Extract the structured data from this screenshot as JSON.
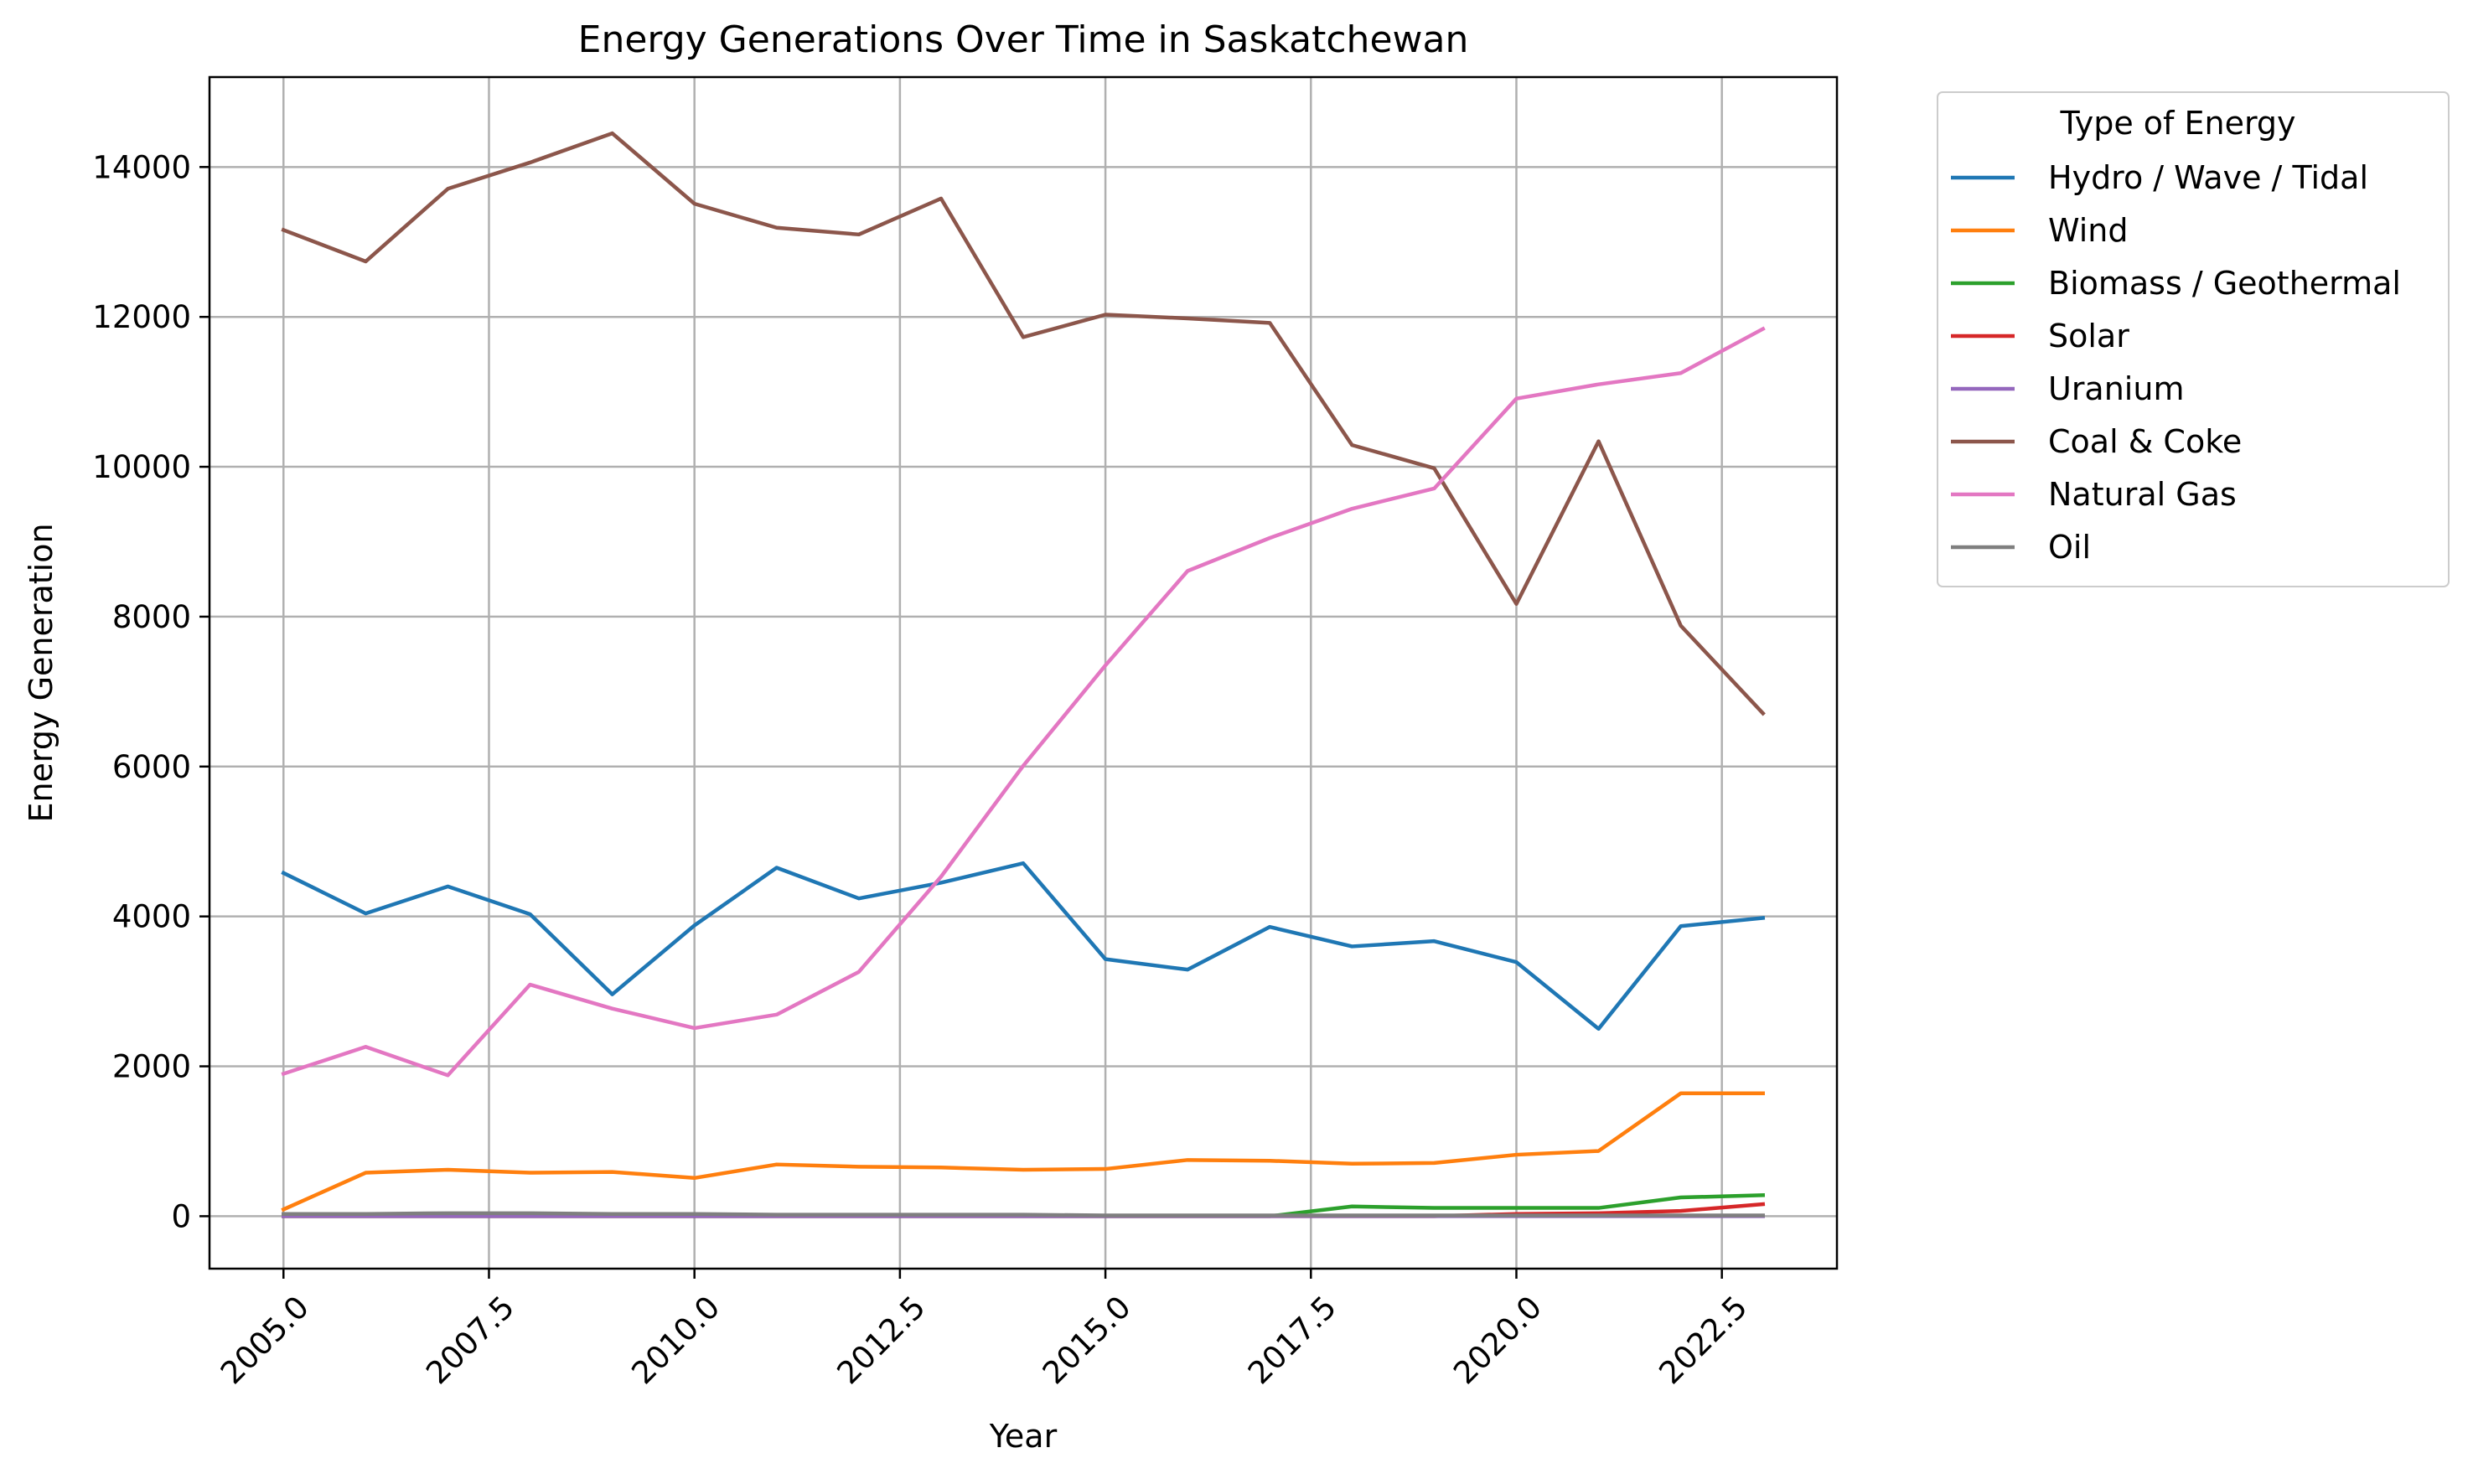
{
  "chart_data": {
    "type": "line",
    "title": "Energy Generations Over Time in Saskatchewan",
    "xlabel": "Year",
    "ylabel": "Energy Generation",
    "xlim": [
      2004.1,
      2023.9
    ],
    "ylim": [
      -700,
      15200
    ],
    "xticks": [
      "2005.0",
      "2007.5",
      "2010.0",
      "2012.5",
      "2015.0",
      "2017.5",
      "2020.0",
      "2022.5"
    ],
    "xtick_values": [
      2005.0,
      2007.5,
      2010.0,
      2012.5,
      2015.0,
      2017.5,
      2020.0,
      2022.5
    ],
    "yticks": [
      "0",
      "2000",
      "4000",
      "6000",
      "8000",
      "10000",
      "12000",
      "14000"
    ],
    "ytick_values": [
      0,
      2000,
      4000,
      6000,
      8000,
      10000,
      12000,
      14000
    ],
    "grid": true,
    "legend": {
      "title": "Type of Energy",
      "placement": "outside-right-top"
    },
    "x": [
      2005,
      2006,
      2007,
      2008,
      2009,
      2010,
      2011,
      2012,
      2013,
      2014,
      2015,
      2016,
      2017,
      2018,
      2019,
      2020,
      2021,
      2022,
      2023
    ],
    "series": [
      {
        "name": "Hydro / Wave / Tidal",
        "color": "#1f77b4",
        "values": [
          4580,
          4040,
          4400,
          4030,
          2960,
          3880,
          4650,
          4240,
          4450,
          4710,
          3430,
          3290,
          3860,
          3600,
          3670,
          3390,
          2500,
          3870,
          3980
        ]
      },
      {
        "name": "Wind",
        "color": "#ff7f0e",
        "values": [
          90,
          580,
          620,
          580,
          590,
          510,
          690,
          660,
          650,
          620,
          630,
          750,
          740,
          700,
          710,
          820,
          870,
          1640,
          1640
        ]
      },
      {
        "name": "Biomass / Geothermal",
        "color": "#2ca02c",
        "values": [
          0,
          0,
          0,
          0,
          0,
          0,
          0,
          0,
          0,
          0,
          0,
          0,
          0,
          130,
          110,
          110,
          110,
          250,
          280
        ]
      },
      {
        "name": "Solar",
        "color": "#d62728",
        "values": [
          0,
          0,
          0,
          0,
          0,
          0,
          0,
          0,
          0,
          0,
          0,
          0,
          0,
          0,
          0,
          30,
          40,
          70,
          160
        ]
      },
      {
        "name": "Uranium",
        "color": "#9467bd",
        "values": [
          0,
          0,
          0,
          0,
          0,
          0,
          0,
          0,
          0,
          0,
          0,
          0,
          0,
          0,
          0,
          0,
          0,
          0,
          0
        ]
      },
      {
        "name": "Coal & Coke",
        "color": "#8c564b",
        "values": [
          13160,
          12740,
          13710,
          14060,
          14450,
          13510,
          13190,
          13100,
          13580,
          11730,
          12030,
          11980,
          11920,
          10290,
          9980,
          8170,
          10340,
          7880,
          6710
        ]
      },
      {
        "name": "Natural Gas",
        "color": "#e377c2",
        "values": [
          1900,
          2260,
          1880,
          3090,
          2770,
          2510,
          2690,
          3260,
          4530,
          6010,
          7350,
          8610,
          9050,
          9440,
          9710,
          10910,
          11100,
          11250,
          11840
        ]
      },
      {
        "name": "Oil",
        "color": "#7f7f7f",
        "values": [
          30,
          30,
          40,
          40,
          30,
          30,
          20,
          20,
          20,
          20,
          10,
          10,
          10,
          10,
          10,
          10,
          10,
          10,
          10
        ]
      }
    ]
  }
}
